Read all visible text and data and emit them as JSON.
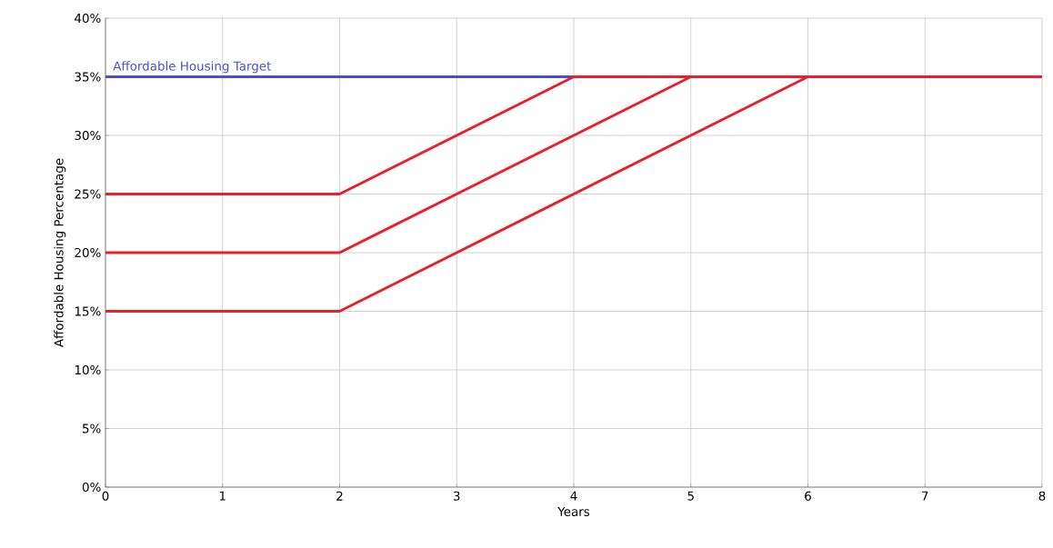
{
  "chart_data": {
    "type": "line",
    "xlabel": "Years",
    "ylabel": "Affordable Housing Percentage",
    "xlim": [
      0,
      8
    ],
    "xticks": [
      0,
      1,
      2,
      3,
      4,
      5,
      6,
      7,
      8
    ],
    "ylim": [
      0,
      40
    ],
    "yticks": [
      {
        "value": 0,
        "label": "0%"
      },
      {
        "value": 5,
        "label": "5%"
      },
      {
        "value": 10,
        "label": "10%"
      },
      {
        "value": 15,
        "label": "15%"
      },
      {
        "value": 20,
        "label": "20%"
      },
      {
        "value": 25,
        "label": "25%"
      },
      {
        "value": 30,
        "label": "30%"
      },
      {
        "value": 35,
        "label": "35%"
      },
      {
        "value": 40,
        "label": "40%"
      }
    ],
    "grid": true,
    "ref_lines": [
      {
        "axis": "y",
        "value": 35,
        "label": "Affordable Housing Target",
        "color": "#4a4fd2"
      }
    ],
    "series": [
      {
        "color": "#e8202a",
        "x": [
          0,
          2,
          4,
          8
        ],
        "values": [
          25,
          25,
          35,
          35
        ]
      },
      {
        "color": "#e8202a",
        "x": [
          0,
          2,
          5,
          8
        ],
        "values": [
          20,
          20,
          35,
          35
        ]
      },
      {
        "color": "#e8202a",
        "x": [
          0,
          2,
          6,
          8
        ],
        "values": [
          15,
          15,
          35,
          35
        ]
      }
    ]
  }
}
